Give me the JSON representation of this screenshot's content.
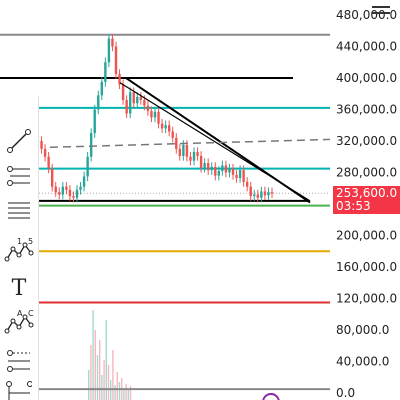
{
  "price_axis": {
    "ticks": [
      "480,000.0",
      "440,000.0",
      "400,000.0",
      "360,000.0",
      "320,000.0",
      "280,000.0",
      "240,000.0",
      "200,000.0",
      "160,000.0",
      "120,000.0",
      "80,000.0",
      "40,000.0",
      "0.0"
    ]
  },
  "current_price": {
    "value": "253,600.0",
    "countdown": "03:53",
    "color": "#f23645"
  },
  "horizontal_levels": [
    {
      "name": "level-455000",
      "price": 455000,
      "color": "#888888"
    },
    {
      "name": "level-400000",
      "price": 400000,
      "color": "#000000"
    },
    {
      "name": "level-362000",
      "price": 362000,
      "color": "#00b3b3"
    },
    {
      "name": "level-285000",
      "price": 285000,
      "color": "#00b3b3"
    },
    {
      "name": "level-244000",
      "price": 244000,
      "color": "#000000"
    },
    {
      "name": "level-238000",
      "price": 238000,
      "color": "#4caf50"
    },
    {
      "name": "level-180000",
      "price": 180000,
      "color": "#e0a800"
    },
    {
      "name": "level-115000",
      "price": 115000,
      "color": "#e03030"
    },
    {
      "name": "level-5000",
      "price": 5000,
      "color": "#888888"
    }
  ],
  "toolbar": {
    "tools": [
      {
        "name": "trend-line-tool-icon"
      },
      {
        "name": "pitchfork-tool-icon"
      },
      {
        "name": "fib-retracement-tool-icon"
      },
      {
        "name": "elliott-wave-tool-icon",
        "label_a": "1",
        "label_b": "5"
      },
      {
        "name": "text-tool-icon",
        "label": "T"
      },
      {
        "name": "pattern-tool-icon",
        "label_a": "A",
        "label_b": "C"
      },
      {
        "name": "projection-tool-icon"
      },
      {
        "name": "measure-tool-icon"
      }
    ]
  },
  "chart_data": {
    "type": "line",
    "title": "",
    "ylim": [
      0,
      480000
    ],
    "series": [
      {
        "values": [
          320000,
          310000,
          300000,
          285000,
          262000,
          255000,
          252000,
          262000,
          258000,
          250000,
          248000,
          258000,
          262000,
          275000,
          300000,
          330000,
          360000,
          378000,
          395000,
          420000,
          450000,
          440000,
          405000,
          392000,
          372000,
          355000,
          382000,
          368000,
          376000,
          372000,
          365000,
          358000,
          350000,
          357000,
          342000,
          336000,
          340000,
          332000,
          324000,
          310000,
          301000,
          315000,
          300000,
          295000,
          306000,
          301000,
          286000,
          292000,
          283000,
          287000,
          276000,
          282000,
          289000,
          280000,
          285000,
          277000,
          273000,
          283000,
          268000,
          262000,
          250000,
          252000,
          248000,
          256000,
          251000,
          255000,
          253600
        ]
      }
    ]
  }
}
